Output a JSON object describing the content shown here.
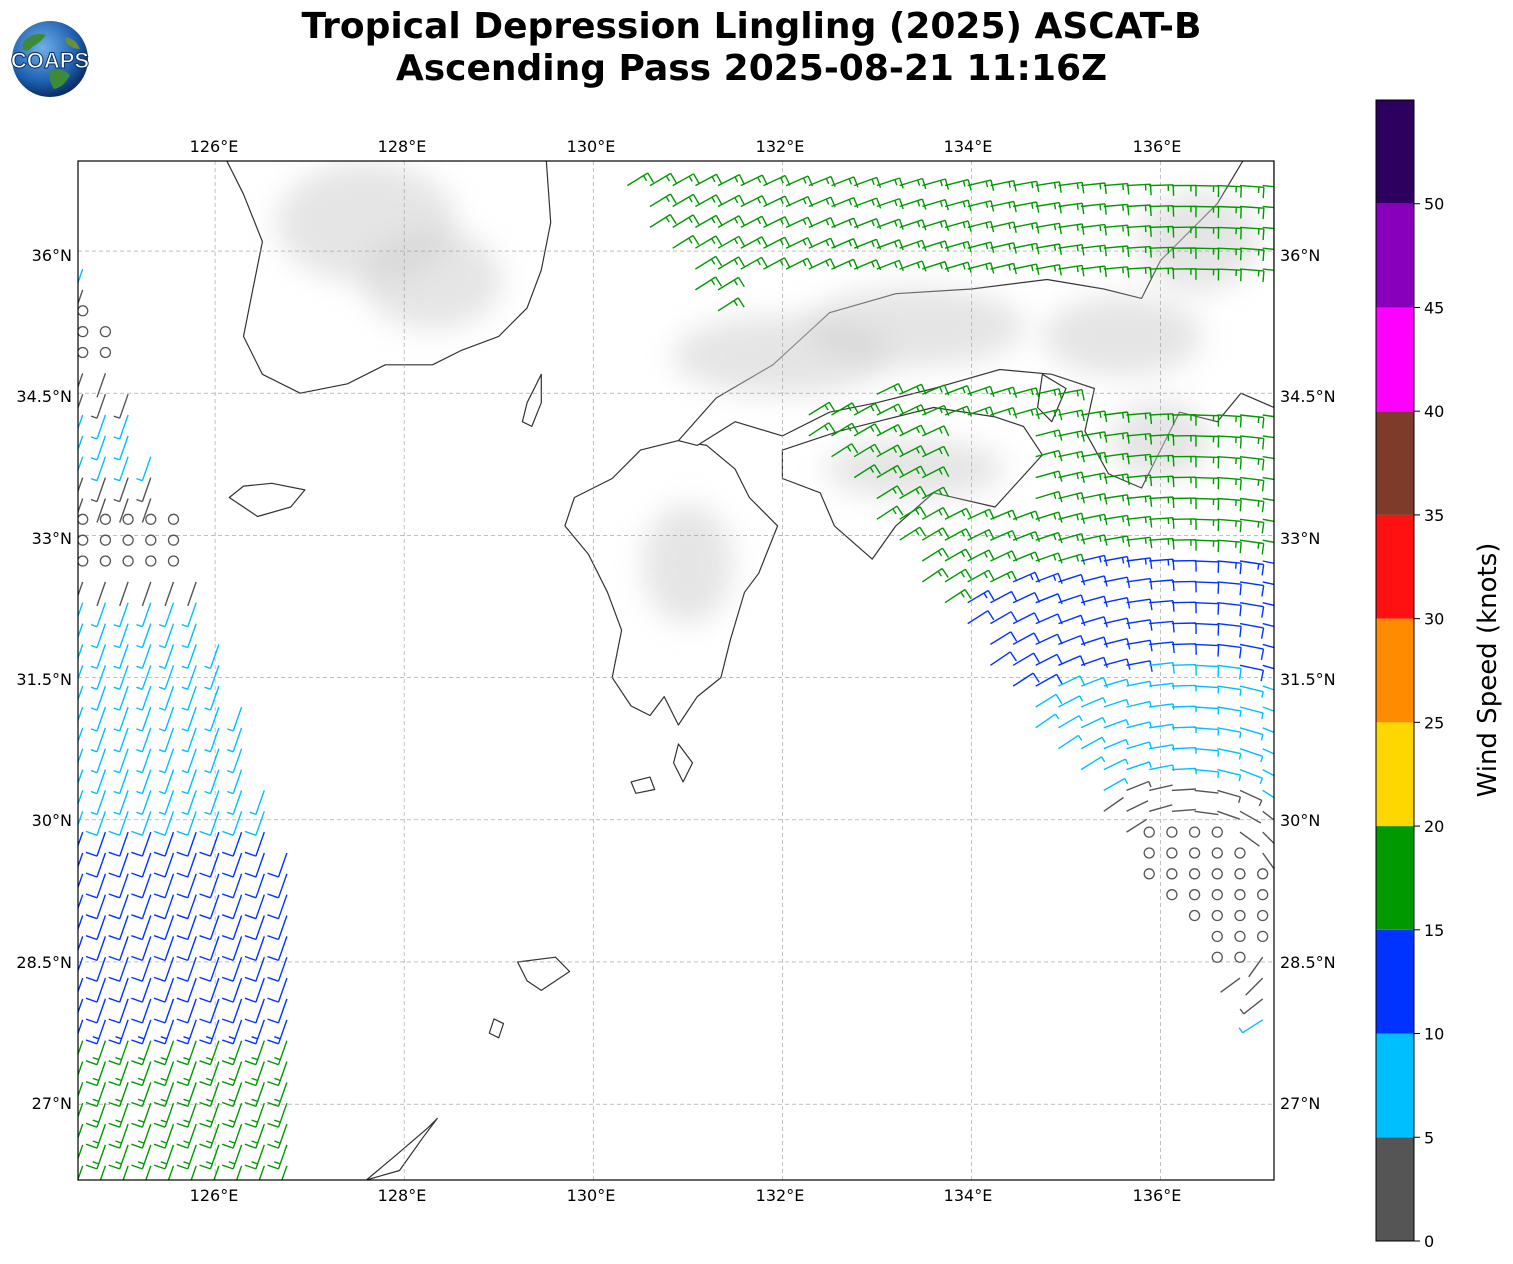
{
  "title": {
    "line1": "Tropical Depression Lingling (2025) ASCAT-B",
    "line2": "Ascending Pass 2025-08-21 11:16Z"
  },
  "logo": {
    "text": "COAPS"
  },
  "map": {
    "lon_range": [
      124.55,
      137.2
    ],
    "lat_range": [
      26.2,
      36.95
    ],
    "lon_ticks": [
      "126°E",
      "128°E",
      "130°E",
      "132°E",
      "134°E",
      "136°E"
    ],
    "lat_ticks": [
      "36°N",
      "34.5°N",
      "33°N",
      "31.5°N",
      "30°N",
      "28.5°N",
      "27°N"
    ],
    "gridlines": true,
    "terrain_shading": true,
    "low_center": {
      "lon": 136.2,
      "lat": 29.1
    }
  },
  "colorbar": {
    "label": "Wind Speed (knots)",
    "ticks": [
      "0",
      "5",
      "10",
      "15",
      "20",
      "25",
      "30",
      "35",
      "40",
      "45",
      "50"
    ],
    "bins": [
      {
        "range": [
          0,
          5
        ],
        "color": "#555555"
      },
      {
        "range": [
          5,
          10
        ],
        "color": "#00bfff"
      },
      {
        "range": [
          10,
          15
        ],
        "color": "#0033ff"
      },
      {
        "range": [
          15,
          20
        ],
        "color": "#009900"
      },
      {
        "range": [
          20,
          25
        ],
        "color": "#ffd700"
      },
      {
        "range": [
          25,
          30
        ],
        "color": "#ff8c00"
      },
      {
        "range": [
          30,
          35
        ],
        "color": "#ff1111"
      },
      {
        "range": [
          35,
          40
        ],
        "color": "#7f3b2a"
      },
      {
        "range": [
          40,
          45
        ],
        "color": "#ff00ff"
      },
      {
        "range": [
          45,
          50
        ],
        "color": "#8800bb"
      },
      {
        "range": [
          50,
          55
        ],
        "color": "#2d0060"
      }
    ]
  }
}
